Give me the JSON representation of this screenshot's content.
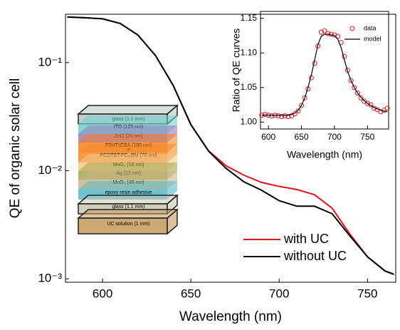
{
  "chart_data": [
    {
      "type": "line",
      "xlabel": "Wavelength (nm)",
      "ylabel": "QE of organic solar cell",
      "x": [
        580,
        590,
        600,
        610,
        620,
        630,
        640,
        650,
        660,
        670,
        680,
        690,
        700,
        710,
        720,
        730,
        740,
        750,
        760,
        765
      ],
      "series": [
        {
          "name": "with UC",
          "color": "#e8131b",
          "values": [
            0.264,
            0.26,
            0.254,
            0.23,
            0.18,
            0.116,
            0.0615,
            0.0267,
            0.0153,
            0.0111,
            0.0091,
            0.0078,
            0.00716,
            0.0067,
            0.006,
            0.0045,
            0.0026,
            0.0016,
            0.00118,
            0.0011
          ]
        },
        {
          "name": "without UC",
          "color": "#000000",
          "values": [
            0.264,
            0.26,
            0.254,
            0.23,
            0.18,
            0.116,
            0.0615,
            0.0267,
            0.0152,
            0.0105,
            0.0079,
            0.0066,
            0.00528,
            0.0047,
            0.0047,
            0.004,
            0.0025,
            0.0016,
            0.00118,
            0.0011
          ]
        }
      ],
      "xlim": [
        579,
        766
      ],
      "xticks": [
        600,
        650,
        700,
        750
      ],
      "yscale": "log",
      "ylim": [
        0.00093,
        0.28
      ],
      "yticks": [
        {
          "value": 0.001,
          "label": "10⁻³"
        },
        {
          "value": 0.01,
          "label": "10⁻²"
        },
        {
          "value": 0.1,
          "label": "10⁻¹"
        }
      ],
      "legend": "lower right",
      "grid": false
    },
    {
      "type": "line",
      "xlabel": "Wavelength (nm)",
      "ylabel": "Ratio of QE curves",
      "x": [
        590,
        595,
        600,
        605,
        610,
        615,
        620,
        625,
        630,
        635,
        640,
        645,
        650,
        655,
        660,
        665,
        670,
        675,
        680,
        685,
        690,
        695,
        700,
        705,
        710,
        715,
        720,
        725,
        730,
        735,
        740,
        745,
        750,
        755,
        760,
        765,
        770,
        775,
        780
      ],
      "series": [
        {
          "name": "data",
          "color": "#e8131b",
          "marker": "circle",
          "values": [
            1.01,
            1.011,
            1.01,
            1.009,
            1.01,
            1.009,
            1.008,
            1.009,
            1.008,
            1.009,
            1.012,
            1.016,
            1.024,
            1.035,
            1.048,
            1.064,
            1.085,
            1.11,
            1.13,
            1.132,
            1.128,
            1.127,
            1.126,
            1.124,
            1.115,
            1.095,
            1.075,
            1.06,
            1.05,
            1.042,
            1.035,
            1.03,
            1.027,
            1.025,
            1.02,
            1.018,
            1.015,
            1.017,
            1.02
          ]
        },
        {
          "name": "model",
          "color": "#000000",
          "marker": "none",
          "values": [
            1.01,
            1.01,
            1.01,
            1.01,
            1.01,
            1.01,
            1.01,
            1.01,
            1.01,
            1.011,
            1.013,
            1.017,
            1.024,
            1.035,
            1.05,
            1.068,
            1.09,
            1.112,
            1.124,
            1.127,
            1.127,
            1.126,
            1.125,
            1.12,
            1.108,
            1.09,
            1.073,
            1.06,
            1.05,
            1.042,
            1.036,
            1.031,
            1.027,
            1.024,
            1.021,
            1.019,
            1.017,
            1.016,
            1.015
          ]
        }
      ],
      "xlim": [
        588,
        782
      ],
      "xticks": [
        600,
        650,
        700,
        750
      ],
      "ylim": [
        0.99,
        1.16
      ],
      "yticks": [
        {
          "value": 1.0,
          "label": "1.00"
        },
        {
          "value": 1.05,
          "label": "1.05"
        },
        {
          "value": 1.1,
          "label": "1.10"
        },
        {
          "value": 1.15,
          "label": "1.15"
        }
      ],
      "legend": "upper right",
      "grid": false
    }
  ],
  "device_stack": {
    "labels": [
      "glass (1.1 mm)",
      "ITO (125 nm)",
      "ZnO (20 nm)",
      "P3HT:ICBA (180 nm)",
      "or",
      "PCDTBT:PC₇₁BM (70 nm)",
      "MoO₃ (10 nm)",
      "Ag (13 nm)",
      "MoO₃ (40 nm)",
      "epoxy resin adhesive",
      "glass (1.1 mm)",
      "UC solution (1 mm)"
    ]
  }
}
